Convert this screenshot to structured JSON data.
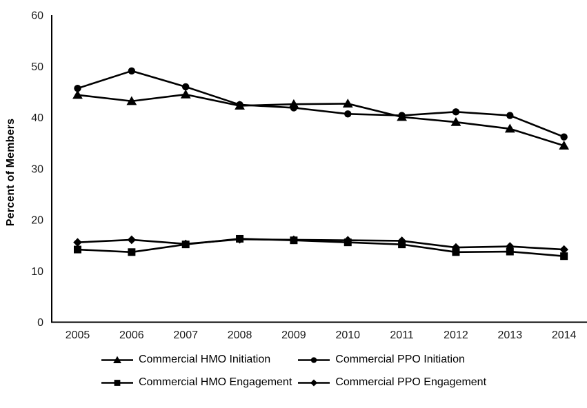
{
  "chart_data": {
    "type": "line",
    "title": "",
    "xlabel": "",
    "ylabel": "Percent of Members",
    "ylim": [
      0,
      60
    ],
    "yticks": [
      0,
      10,
      20,
      30,
      40,
      50,
      60
    ],
    "x": [
      "2005",
      "2006",
      "2007",
      "2008",
      "2009",
      "2010",
      "2011",
      "2012",
      "2013",
      "2014"
    ],
    "grid": false,
    "legend_position": "bottom",
    "line_color": "#000000",
    "series": [
      {
        "name": "Commercial HMO Initiation",
        "marker": "triangle",
        "values": [
          44.4,
          43.2,
          44.5,
          42.3,
          42.6,
          42.7,
          40.1,
          39.1,
          37.8,
          34.5
        ]
      },
      {
        "name": "Commercial PPO Initiation",
        "marker": "circle",
        "values": [
          45.7,
          49.1,
          46.0,
          42.5,
          41.9,
          40.7,
          40.4,
          41.1,
          40.4,
          36.2
        ]
      },
      {
        "name": "Commercial HMO Engagement",
        "marker": "square",
        "values": [
          14.2,
          13.7,
          15.2,
          16.3,
          16.0,
          15.6,
          15.2,
          13.7,
          13.8,
          12.9
        ]
      },
      {
        "name": "Commercial PPO Engagement",
        "marker": "diamond",
        "values": [
          15.6,
          16.1,
          15.3,
          16.2,
          16.1,
          16.0,
          15.9,
          14.6,
          14.8,
          14.2
        ]
      }
    ]
  }
}
